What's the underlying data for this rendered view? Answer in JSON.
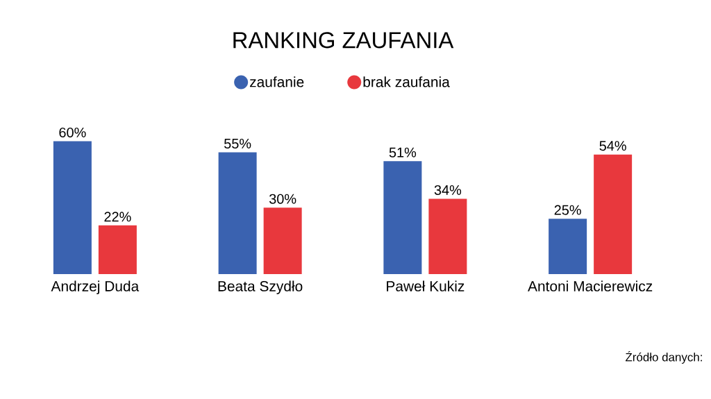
{
  "chart_data": {
    "type": "bar",
    "title": "RANKING ZAUFANIA",
    "categories": [
      "Andrzej Duda",
      "Beata Szydło",
      "Paweł Kukiz",
      "Antoni Macierewicz"
    ],
    "series": [
      {
        "name": "zaufanie",
        "color": "#3a62b0",
        "values": [
          60,
          55,
          51,
          25
        ],
        "value_labels": [
          "60%",
          "55%",
          "51%",
          "25%"
        ]
      },
      {
        "name": "brak zaufania",
        "color": "#e8383d",
        "values": [
          22,
          30,
          34,
          54
        ],
        "value_labels": [
          "22%",
          "30%",
          "34%",
          "54%"
        ]
      }
    ],
    "legend": "top",
    "annotations": [
      "Źródło danych:"
    ]
  }
}
